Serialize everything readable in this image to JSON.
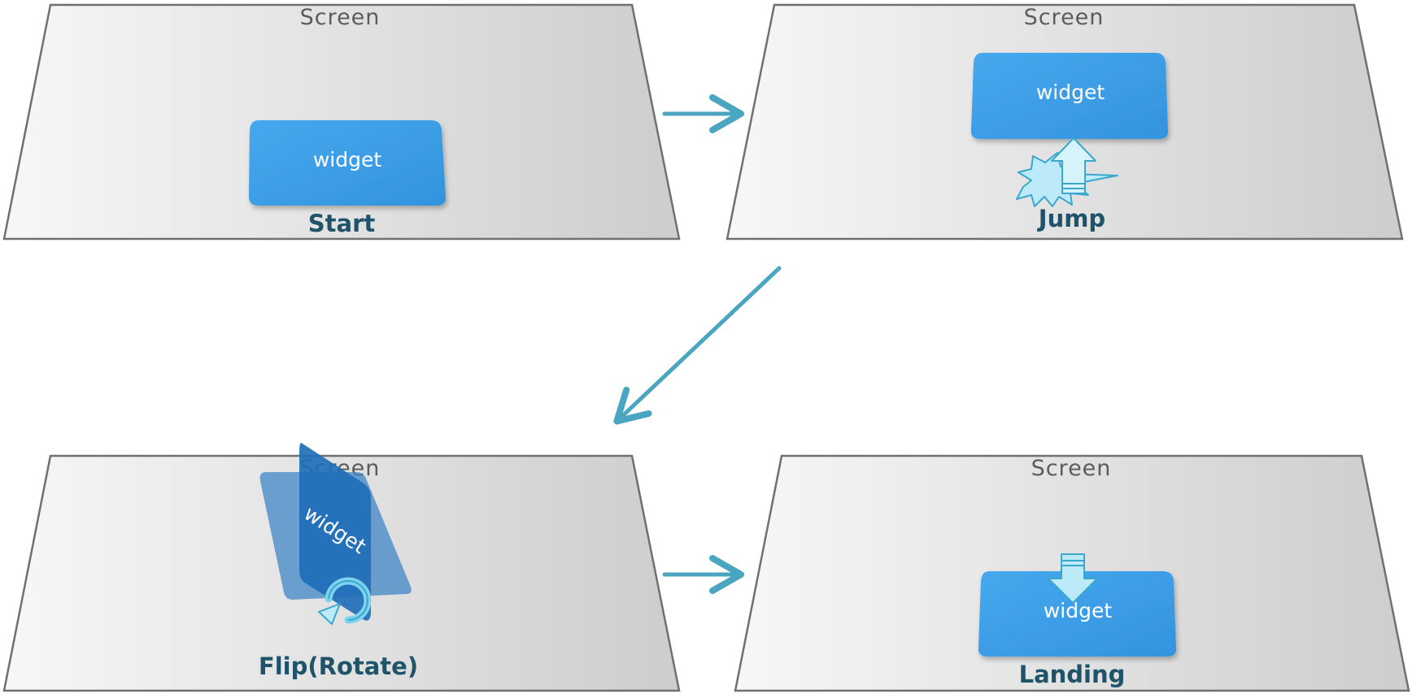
{
  "colors": {
    "screen_border": "#666666",
    "screen_fill_light": "#f6f6f6",
    "screen_fill_dark": "#cfcfcf",
    "widget_fill": "#3a9ee8",
    "flip_fill": "#1f6fb8",
    "arrow": "#4aa5c0",
    "icon_fill": "#bdeaf8",
    "icon_stroke": "#3aa7cc",
    "step_label": "#1e5369"
  },
  "panels": [
    {
      "id": "start",
      "screen_label": "Screen",
      "widget_label": "widget",
      "step_label": "Start"
    },
    {
      "id": "jump",
      "screen_label": "Screen",
      "widget_label": "widget",
      "step_label": "Jump",
      "icon": "burst-up-arrow-icon"
    },
    {
      "id": "flip",
      "screen_label": "Screen",
      "widget_label": "widget",
      "step_label": "Flip(Rotate)",
      "icon": "rotate-icon"
    },
    {
      "id": "landing",
      "screen_label": "Screen",
      "widget_label": "widget",
      "step_label": "Landing",
      "icon": "down-arrow-icon"
    }
  ],
  "connectors": [
    {
      "from": "start",
      "to": "jump",
      "icon": "arrow-right-icon"
    },
    {
      "from": "jump",
      "to": "flip",
      "icon": "arrow-diagonal-icon"
    },
    {
      "from": "flip",
      "to": "landing",
      "icon": "arrow-right-icon"
    }
  ]
}
